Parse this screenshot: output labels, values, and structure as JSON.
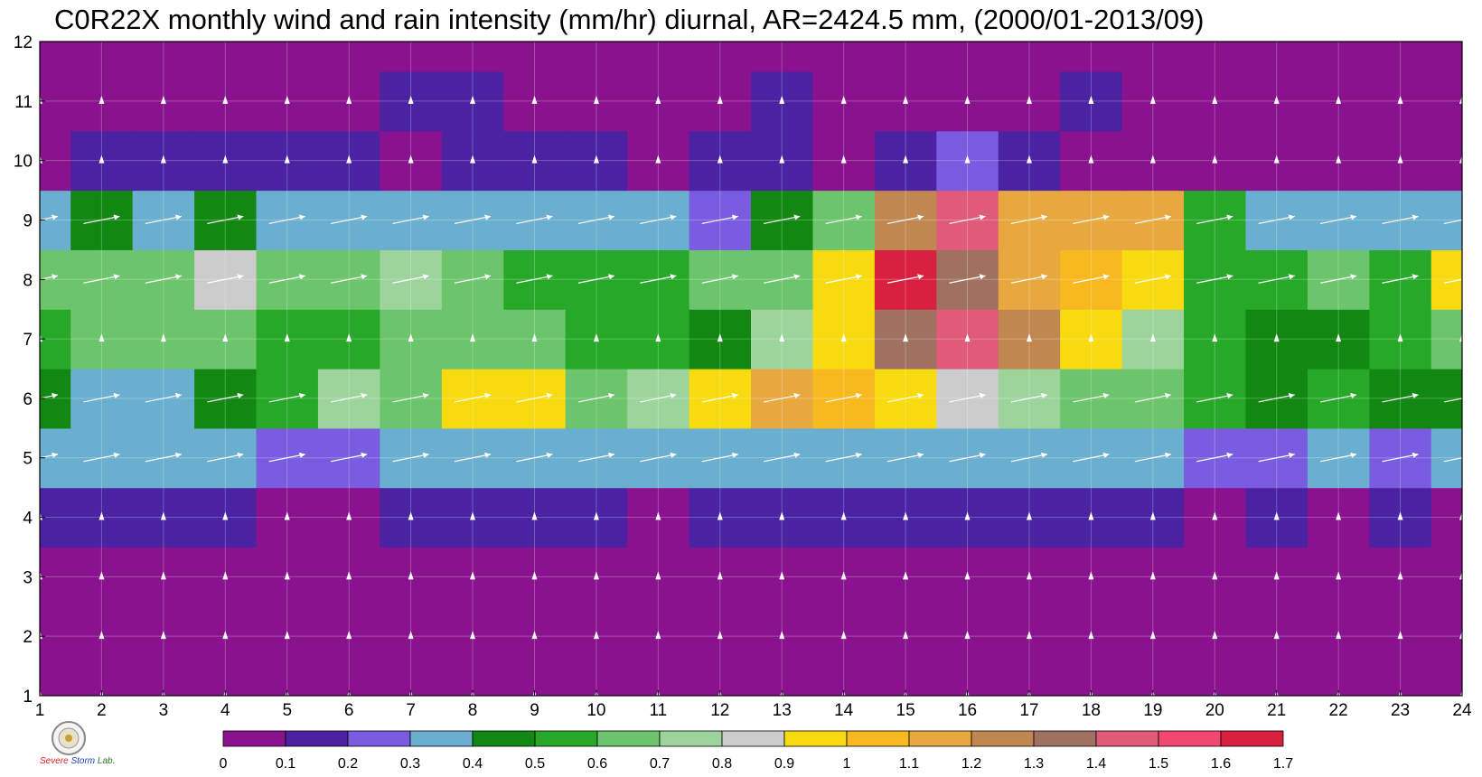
{
  "chart_data": {
    "type": "heatmap",
    "title": "C0R22X monthly wind and rain intensity (mm/hr) diurnal, AR=2424.5 mm, (2000/01-2013/09)",
    "xlabel": "",
    "ylabel": "",
    "x_ticks": [
      "1",
      "2",
      "3",
      "4",
      "5",
      "6",
      "7",
      "8",
      "9",
      "10",
      "11",
      "12",
      "13",
      "14",
      "15",
      "16",
      "17",
      "18",
      "19",
      "20",
      "21",
      "22",
      "23",
      "24"
    ],
    "y_ticks": [
      "1",
      "2",
      "3",
      "4",
      "5",
      "6",
      "7",
      "8",
      "9",
      "10",
      "11",
      "12"
    ],
    "xlim": [
      1,
      24
    ],
    "ylim": [
      1,
      12
    ],
    "grid": true,
    "colorbar": {
      "placement": "bottom",
      "levels": [
        0,
        0.1,
        0.2,
        0.3,
        0.4,
        0.5,
        0.6,
        0.7,
        0.8,
        0.9,
        1,
        1.1,
        1.2,
        1.3,
        1.4,
        1.5,
        1.6,
        1.7
      ],
      "labels": [
        "0",
        "0.1",
        "0.2",
        "0.3",
        "0.4",
        "0.5",
        "0.6",
        "0.7",
        "0.8",
        "0.9",
        "1",
        "1.1",
        "1.2",
        "1.3",
        "1.4",
        "1.5",
        "1.6",
        "1.7"
      ],
      "colors": [
        "#8a128e",
        "#4a22a2",
        "#7a5ce0",
        "#6aaed0",
        "#128812",
        "#28a828",
        "#6cc46c",
        "#9cd49c",
        "#cccccc",
        "#f8da10",
        "#f8b820",
        "#e8a840",
        "#c08850",
        "#a07060",
        "#e05a7a",
        "#f04870",
        "#d82040"
      ]
    },
    "wind_bands": {
      "strong_rows": [
        5,
        6,
        8,
        9
      ],
      "direction": "east"
    },
    "rows": [
      {
        "y": 1,
        "values": [
          0.02,
          0.02,
          0.02,
          0.02,
          0.02,
          0.02,
          0.02,
          0.02,
          0.02,
          0.02,
          0.02,
          0.02,
          0.02,
          0.02,
          0.02,
          0.02,
          0.02,
          0.02,
          0.02,
          0.02,
          0.02,
          0.02,
          0.02,
          0.02
        ]
      },
      {
        "y": 2,
        "values": [
          0.02,
          0.02,
          0.02,
          0.02,
          0.02,
          0.02,
          0.02,
          0.02,
          0.02,
          0.02,
          0.02,
          0.02,
          0.02,
          0.02,
          0.02,
          0.02,
          0.02,
          0.02,
          0.02,
          0.02,
          0.02,
          0.02,
          0.02,
          0.02
        ]
      },
      {
        "y": 3,
        "values": [
          0.02,
          0.02,
          0.02,
          0.02,
          0.02,
          0.02,
          0.02,
          0.02,
          0.02,
          0.02,
          0.02,
          0.02,
          0.02,
          0.02,
          0.02,
          0.02,
          0.02,
          0.02,
          0.02,
          0.02,
          0.02,
          0.02,
          0.02,
          0.02
        ]
      },
      {
        "y": 4,
        "values": [
          0.12,
          0.12,
          0.12,
          0.14,
          0.09,
          0.06,
          0.11,
          0.12,
          0.13,
          0.12,
          0.08,
          0.12,
          0.13,
          0.18,
          0.14,
          0.14,
          0.11,
          0.14,
          0.15,
          0.04,
          0.11,
          0.05,
          0.12,
          0.06
        ]
      },
      {
        "y": 5,
        "values": [
          0.32,
          0.35,
          0.33,
          0.32,
          0.24,
          0.25,
          0.32,
          0.33,
          0.34,
          0.34,
          0.34,
          0.33,
          0.34,
          0.33,
          0.34,
          0.35,
          0.33,
          0.33,
          0.32,
          0.26,
          0.24,
          0.3,
          0.24,
          0.33
        ]
      },
      {
        "y": 6,
        "values": [
          0.45,
          0.38,
          0.33,
          0.44,
          0.55,
          0.72,
          0.62,
          0.95,
          0.92,
          0.65,
          0.72,
          0.95,
          1.1,
          1.0,
          0.97,
          0.85,
          0.72,
          0.66,
          0.63,
          0.52,
          0.42,
          0.52,
          0.42,
          0.41
        ]
      },
      {
        "y": 7,
        "values": [
          0.55,
          0.62,
          0.64,
          0.62,
          0.58,
          0.52,
          0.62,
          0.64,
          0.62,
          0.58,
          0.52,
          0.45,
          0.72,
          0.92,
          1.3,
          1.4,
          1.2,
          0.95,
          0.72,
          0.52,
          0.42,
          0.45,
          0.55,
          0.62
        ]
      },
      {
        "y": 8,
        "values": [
          0.62,
          0.66,
          0.62,
          0.82,
          0.66,
          0.62,
          0.74,
          0.62,
          0.58,
          0.58,
          0.57,
          0.62,
          0.65,
          0.95,
          1.7,
          1.35,
          1.1,
          1.05,
          0.95,
          0.55,
          0.52,
          0.62,
          0.55,
          0.95
        ]
      },
      {
        "y": 9,
        "values": [
          0.36,
          0.44,
          0.32,
          0.4,
          0.32,
          0.32,
          0.36,
          0.38,
          0.34,
          0.32,
          0.38,
          0.28,
          0.42,
          0.62,
          1.2,
          1.45,
          1.15,
          1.1,
          1.15,
          0.52,
          0.36,
          0.33,
          0.33,
          0.36
        ]
      },
      {
        "y": 10,
        "values": [
          0.06,
          0.12,
          0.14,
          0.12,
          0.12,
          0.12,
          0.04,
          0.12,
          0.12,
          0.12,
          0.09,
          0.14,
          0.12,
          0.06,
          0.15,
          0.25,
          0.16,
          0.06,
          0.07,
          0.06,
          0.06,
          0.06,
          0.06,
          0.06
        ]
      },
      {
        "y": 11,
        "values": [
          0.02,
          0.02,
          0.02,
          0.02,
          0.02,
          0.02,
          0.14,
          0.14,
          0.02,
          0.02,
          0.02,
          0.02,
          0.15,
          0.02,
          0.02,
          0.02,
          0.02,
          0.14,
          0.02,
          0.02,
          0.02,
          0.02,
          0.02,
          0.02
        ]
      },
      {
        "y": 12,
        "values": [
          0.02,
          0.02,
          0.02,
          0.02,
          0.02,
          0.02,
          0.02,
          0.02,
          0.02,
          0.02,
          0.02,
          0.02,
          0.02,
          0.02,
          0.02,
          0.02,
          0.02,
          0.02,
          0.02,
          0.02,
          0.02,
          0.02,
          0.02,
          0.02
        ]
      }
    ]
  },
  "logo": {
    "line1": "Severe",
    "line2": "Storm",
    "line3": "Lab."
  }
}
